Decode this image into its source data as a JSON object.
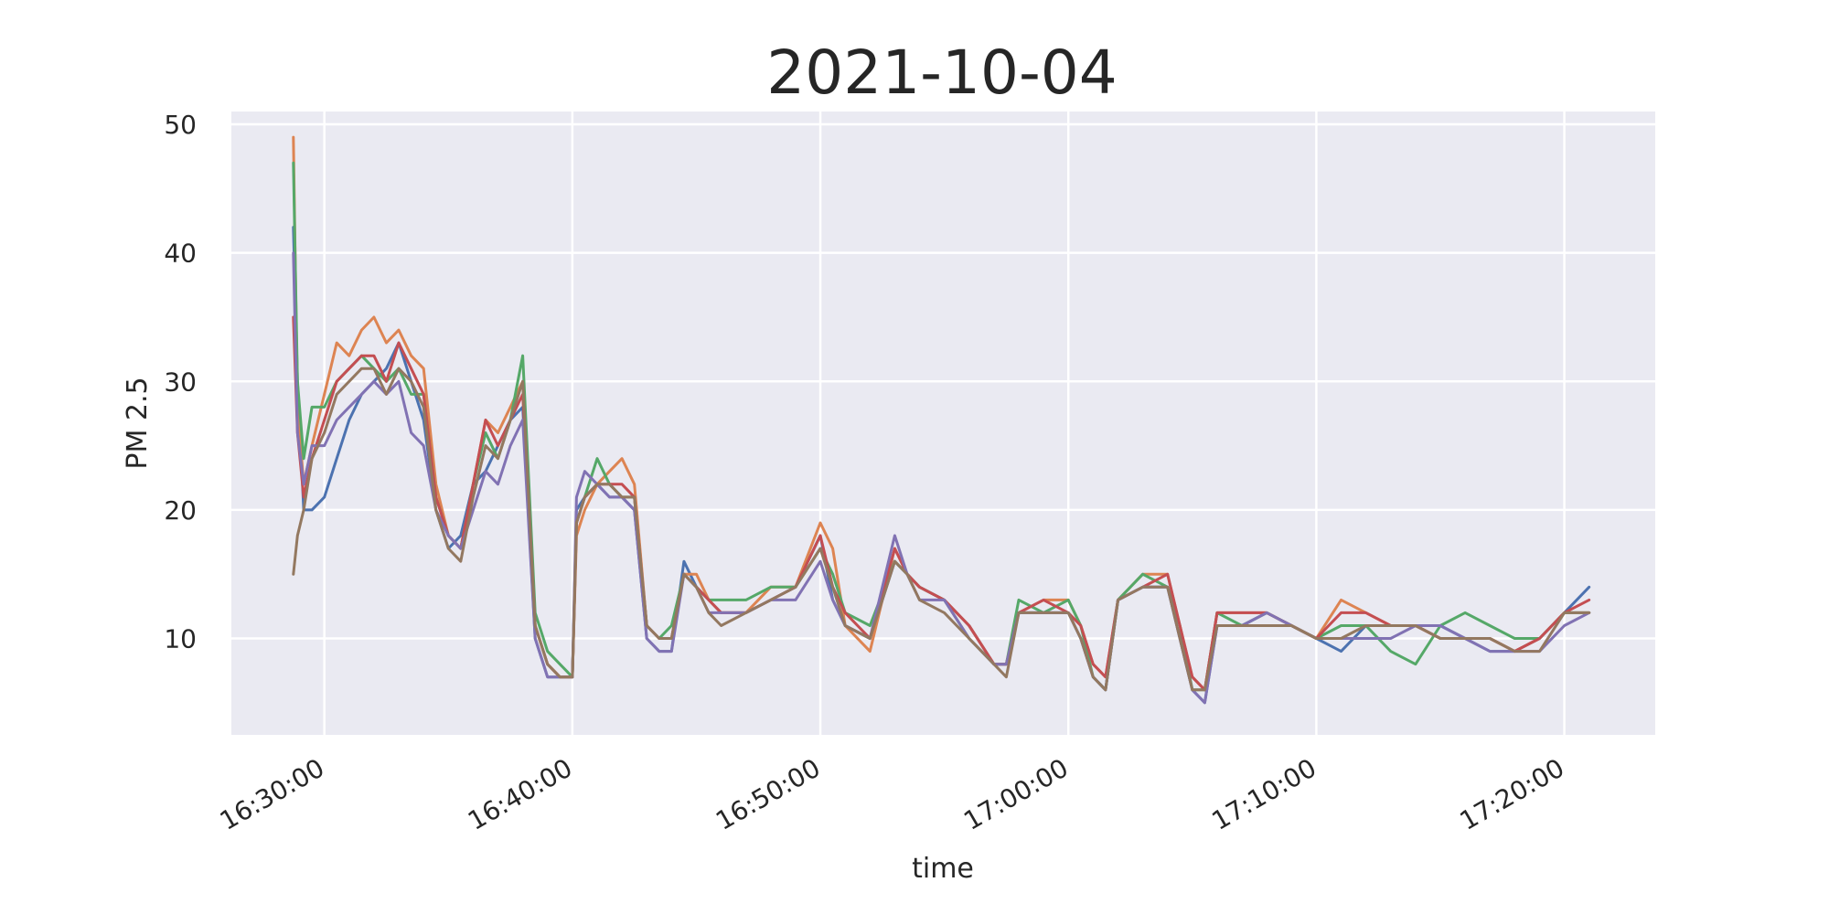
{
  "chart_data": {
    "type": "line",
    "title": "2021-10-04",
    "xlabel": "time",
    "ylabel": "PM 2.5",
    "x_ticks": [
      "16:30:00",
      "16:40:00",
      "16:50:00",
      "17:00:00",
      "17:10:00",
      "17:20:00"
    ],
    "y_ticks": [
      10,
      20,
      30,
      40,
      50
    ],
    "xlim": [
      "16:26:15",
      "17:23:40"
    ],
    "ylim": [
      2.5,
      51
    ],
    "grid": true,
    "legend": "none",
    "colors": [
      "#4c72b0",
      "#dd8452",
      "#55a868",
      "#c44e52",
      "#8172b3",
      "#937860"
    ],
    "background": "#eaeaf2",
    "series": [
      {
        "color": "#4c72b0",
        "x": [
          "16:28:45",
          "16:28:55",
          "16:29:10",
          "16:29:30",
          "16:30:00",
          "16:30:30",
          "16:31:00",
          "16:31:30",
          "16:32:00",
          "16:32:30",
          "16:33:00",
          "16:33:30",
          "16:34:00",
          "16:34:30",
          "16:35:00",
          "16:35:30",
          "16:36:00",
          "16:36:30",
          "16:37:00",
          "16:37:30",
          "16:38:00",
          "16:38:30",
          "16:39:00",
          "16:39:30",
          "16:40:00",
          "16:40:10",
          "16:40:30",
          "16:41:00",
          "16:41:30",
          "16:42:00",
          "16:42:30",
          "16:43:00",
          "16:43:30",
          "16:44:00",
          "16:44:30",
          "16:45:00",
          "16:45:30",
          "16:46:00",
          "16:47:00",
          "16:48:00",
          "16:49:00",
          "16:50:00",
          "16:50:30",
          "16:51:00",
          "16:52:00",
          "16:53:00",
          "16:53:30",
          "16:54:00",
          "16:55:00",
          "16:56:00",
          "16:57:00",
          "16:57:30",
          "16:58:00",
          "16:59:00",
          "17:00:00",
          "17:00:30",
          "17:01:00",
          "17:01:30",
          "17:02:00",
          "17:03:00",
          "17:04:00",
          "17:04:30",
          "17:05:00",
          "17:05:30",
          "17:06:00",
          "17:07:00",
          "17:08:00",
          "17:09:00",
          "17:10:00",
          "17:11:00",
          "17:12:00",
          "17:13:00",
          "17:14:00",
          "17:15:00",
          "17:16:00",
          "17:17:00",
          "17:18:00",
          "17:19:00",
          "17:20:00",
          "17:21:00"
        ],
        "y": [
          42,
          30,
          20,
          20,
          21,
          24,
          27,
          29,
          30,
          31,
          33,
          30,
          27,
          20,
          17,
          18,
          22,
          23,
          25,
          27,
          28,
          10,
          7,
          7,
          7,
          20,
          21,
          22,
          21,
          21,
          20,
          10,
          9,
          9,
          16,
          14,
          13,
          12,
          12,
          13,
          14,
          18,
          13,
          11,
          10,
          16,
          15,
          14,
          13,
          11,
          8,
          8,
          12,
          12,
          12,
          10,
          7,
          6,
          13,
          14,
          14,
          10,
          6,
          5,
          11,
          11,
          12,
          11,
          10,
          9,
          11,
          11,
          11,
          11,
          10,
          9,
          9,
          10,
          12,
          14
        ]
      },
      {
        "color": "#dd8452",
        "x": [
          "16:28:45",
          "16:28:55",
          "16:29:10",
          "16:29:30",
          "16:30:00",
          "16:30:30",
          "16:31:00",
          "16:31:30",
          "16:32:00",
          "16:32:30",
          "16:33:00",
          "16:33:30",
          "16:34:00",
          "16:34:30",
          "16:35:00",
          "16:35:30",
          "16:36:00",
          "16:36:30",
          "16:37:00",
          "16:37:30",
          "16:38:00",
          "16:38:30",
          "16:39:00",
          "16:39:30",
          "16:40:00",
          "16:40:10",
          "16:40:30",
          "16:41:00",
          "16:41:30",
          "16:42:00",
          "16:42:30",
          "16:43:00",
          "16:43:30",
          "16:44:00",
          "16:44:30",
          "16:45:00",
          "16:45:30",
          "16:46:00",
          "16:47:00",
          "16:48:00",
          "16:49:00",
          "16:50:00",
          "16:50:30",
          "16:51:00",
          "16:52:00",
          "16:53:00",
          "16:53:30",
          "16:54:00",
          "16:55:00",
          "16:56:00",
          "16:57:00",
          "16:57:30",
          "16:58:00",
          "16:59:00",
          "17:00:00",
          "17:00:30",
          "17:01:00",
          "17:01:30",
          "17:02:00",
          "17:03:00",
          "17:04:00",
          "17:04:30",
          "17:05:00",
          "17:05:30",
          "17:06:00",
          "17:07:00",
          "17:08:00",
          "17:09:00",
          "17:10:00",
          "17:11:00",
          "17:12:00",
          "17:13:00",
          "17:14:00",
          "17:15:00",
          "17:16:00",
          "17:17:00",
          "17:18:00",
          "17:19:00",
          "17:20:00",
          "17:21:00"
        ],
        "y": [
          49,
          28,
          22,
          25,
          29,
          33,
          32,
          34,
          35,
          33,
          34,
          32,
          31,
          22,
          18,
          17,
          22,
          27,
          26,
          28,
          30,
          11,
          8,
          7,
          7,
          18,
          20,
          22,
          23,
          24,
          22,
          11,
          10,
          10,
          15,
          15,
          13,
          12,
          12,
          14,
          14,
          19,
          17,
          11,
          9,
          17,
          15,
          14,
          13,
          11,
          8,
          8,
          12,
          13,
          13,
          11,
          8,
          7,
          13,
          15,
          15,
          11,
          7,
          6,
          12,
          12,
          12,
          11,
          10,
          13,
          12,
          11,
          11,
          10,
          10,
          10,
          9,
          10,
          12,
          12
        ]
      },
      {
        "color": "#55a868",
        "x": [
          "16:28:45",
          "16:28:55",
          "16:29:10",
          "16:29:30",
          "16:30:00",
          "16:30:30",
          "16:31:00",
          "16:31:30",
          "16:32:00",
          "16:32:30",
          "16:33:00",
          "16:33:30",
          "16:34:00",
          "16:34:30",
          "16:35:00",
          "16:35:30",
          "16:36:00",
          "16:36:30",
          "16:37:00",
          "16:37:30",
          "16:38:00",
          "16:38:30",
          "16:39:00",
          "16:39:30",
          "16:40:00",
          "16:40:10",
          "16:40:30",
          "16:41:00",
          "16:41:30",
          "16:42:00",
          "16:42:30",
          "16:43:00",
          "16:43:30",
          "16:44:00",
          "16:44:30",
          "16:45:00",
          "16:45:30",
          "16:46:00",
          "16:47:00",
          "16:48:00",
          "16:49:00",
          "16:50:00",
          "16:50:30",
          "16:51:00",
          "16:52:00",
          "16:53:00",
          "16:53:30",
          "16:54:00",
          "16:55:00",
          "16:56:00",
          "16:57:00",
          "16:57:30",
          "16:58:00",
          "16:59:00",
          "17:00:00",
          "17:00:30",
          "17:01:00",
          "17:01:30",
          "17:02:00",
          "17:03:00",
          "17:04:00",
          "17:04:30",
          "17:05:00",
          "17:05:30",
          "17:06:00",
          "17:07:00",
          "17:08:00",
          "17:09:00",
          "17:10:00",
          "17:11:00",
          "17:12:00",
          "17:13:00",
          "17:14:00",
          "17:15:00",
          "17:16:00",
          "17:17:00",
          "17:18:00",
          "17:19:00",
          "17:20:00",
          "17:21:00"
        ],
        "y": [
          47,
          30,
          24,
          28,
          28,
          30,
          31,
          32,
          31,
          30,
          31,
          29,
          29,
          21,
          18,
          17,
          22,
          26,
          24,
          27,
          32,
          12,
          9,
          8,
          7,
          19,
          21,
          24,
          22,
          21,
          21,
          11,
          10,
          11,
          15,
          14,
          13,
          13,
          13,
          14,
          14,
          17,
          15,
          12,
          11,
          16,
          15,
          14,
          13,
          10,
          8,
          8,
          13,
          12,
          13,
          11,
          7,
          6,
          13,
          15,
          14,
          11,
          6,
          6,
          12,
          11,
          12,
          11,
          10,
          11,
          11,
          9,
          8,
          11,
          12,
          11,
          10,
          10,
          12,
          12
        ]
      },
      {
        "color": "#c44e52",
        "x": [
          "16:28:45",
          "16:28:55",
          "16:29:10",
          "16:29:30",
          "16:30:00",
          "16:30:30",
          "16:31:00",
          "16:31:30",
          "16:32:00",
          "16:32:30",
          "16:33:00",
          "16:33:30",
          "16:34:00",
          "16:34:30",
          "16:35:00",
          "16:35:30",
          "16:36:00",
          "16:36:30",
          "16:37:00",
          "16:37:30",
          "16:38:00",
          "16:38:30",
          "16:39:00",
          "16:39:30",
          "16:40:00",
          "16:40:10",
          "16:40:30",
          "16:41:00",
          "16:41:30",
          "16:42:00",
          "16:42:30",
          "16:43:00",
          "16:43:30",
          "16:44:00",
          "16:44:30",
          "16:45:00",
          "16:45:30",
          "16:46:00",
          "16:47:00",
          "16:48:00",
          "16:49:00",
          "16:50:00",
          "16:50:30",
          "16:51:00",
          "16:52:00",
          "16:53:00",
          "16:53:30",
          "16:54:00",
          "16:55:00",
          "16:56:00",
          "16:57:00",
          "16:57:30",
          "16:58:00",
          "16:59:00",
          "17:00:00",
          "17:00:30",
          "17:01:00",
          "17:01:30",
          "17:02:00",
          "17:03:00",
          "17:04:00",
          "17:04:30",
          "17:05:00",
          "17:05:30",
          "17:06:00",
          "17:07:00",
          "17:08:00",
          "17:09:00",
          "17:10:00",
          "17:11:00",
          "17:12:00",
          "17:13:00",
          "17:14:00",
          "17:15:00",
          "17:16:00",
          "17:17:00",
          "17:18:00",
          "17:19:00",
          "17:20:00",
          "17:21:00"
        ],
        "y": [
          35,
          26,
          21,
          24,
          27,
          30,
          31,
          32,
          32,
          30,
          33,
          31,
          29,
          21,
          18,
          17,
          22,
          27,
          25,
          27,
          29,
          11,
          8,
          7,
          7,
          19,
          21,
          22,
          22,
          22,
          21,
          11,
          10,
          10,
          15,
          14,
          13,
          12,
          12,
          13,
          14,
          18,
          14,
          12,
          10,
          17,
          15,
          14,
          13,
          11,
          8,
          8,
          12,
          13,
          12,
          11,
          8,
          7,
          13,
          14,
          15,
          11,
          7,
          6,
          12,
          12,
          12,
          11,
          10,
          12,
          12,
          11,
          11,
          10,
          10,
          10,
          9,
          10,
          12,
          13
        ]
      },
      {
        "color": "#8172b3",
        "x": [
          "16:28:45",
          "16:28:55",
          "16:29:10",
          "16:29:30",
          "16:30:00",
          "16:30:30",
          "16:31:00",
          "16:31:30",
          "16:32:00",
          "16:32:30",
          "16:33:00",
          "16:33:30",
          "16:34:00",
          "16:34:30",
          "16:35:00",
          "16:35:30",
          "16:36:00",
          "16:36:30",
          "16:37:00",
          "16:37:30",
          "16:38:00",
          "16:38:30",
          "16:39:00",
          "16:39:30",
          "16:40:00",
          "16:40:10",
          "16:40:30",
          "16:41:00",
          "16:41:30",
          "16:42:00",
          "16:42:30",
          "16:43:00",
          "16:43:30",
          "16:44:00",
          "16:44:30",
          "16:45:00",
          "16:45:30",
          "16:46:00",
          "16:47:00",
          "16:48:00",
          "16:49:00",
          "16:50:00",
          "16:50:30",
          "16:51:00",
          "16:52:00",
          "16:53:00",
          "16:53:30",
          "16:54:00",
          "16:55:00",
          "16:56:00",
          "16:57:00",
          "16:57:30",
          "16:58:00",
          "16:59:00",
          "17:00:00",
          "17:00:30",
          "17:01:00",
          "17:01:30",
          "17:02:00",
          "17:03:00",
          "17:04:00",
          "17:04:30",
          "17:05:00",
          "17:05:30",
          "17:06:00",
          "17:07:00",
          "17:08:00",
          "17:09:00",
          "17:10:00",
          "17:11:00",
          "17:12:00",
          "17:13:00",
          "17:14:00",
          "17:15:00",
          "17:16:00",
          "17:17:00",
          "17:18:00",
          "17:19:00",
          "17:20:00",
          "17:21:00"
        ],
        "y": [
          40,
          26,
          22,
          25,
          25,
          27,
          28,
          29,
          30,
          29,
          30,
          26,
          25,
          20,
          18,
          17,
          20,
          23,
          22,
          25,
          27,
          10,
          7,
          7,
          7,
          21,
          23,
          22,
          21,
          21,
          20,
          10,
          9,
          9,
          15,
          14,
          12,
          12,
          12,
          13,
          13,
          16,
          13,
          11,
          10,
          18,
          15,
          13,
          13,
          10,
          8,
          8,
          12,
          12,
          12,
          10,
          7,
          6,
          13,
          14,
          14,
          10,
          6,
          5,
          11,
          11,
          12,
          11,
          10,
          10,
          10,
          10,
          11,
          11,
          10,
          9,
          9,
          9,
          11,
          12
        ]
      },
      {
        "color": "#937860",
        "x": [
          "16:28:45",
          "16:28:55",
          "16:29:10",
          "16:29:30",
          "16:30:00",
          "16:30:30",
          "16:31:00",
          "16:31:30",
          "16:32:00",
          "16:32:30",
          "16:33:00",
          "16:33:30",
          "16:34:00",
          "16:34:30",
          "16:35:00",
          "16:35:30",
          "16:36:00",
          "16:36:30",
          "16:37:00",
          "16:37:30",
          "16:38:00",
          "16:38:30",
          "16:39:00",
          "16:39:30",
          "16:40:00",
          "16:40:10",
          "16:40:30",
          "16:41:00",
          "16:41:30",
          "16:42:00",
          "16:42:30",
          "16:43:00",
          "16:43:30",
          "16:44:00",
          "16:44:30",
          "16:45:00",
          "16:45:30",
          "16:46:00",
          "16:47:00",
          "16:48:00",
          "16:49:00",
          "16:50:00",
          "16:50:30",
          "16:51:00",
          "16:52:00",
          "16:53:00",
          "16:53:30",
          "16:54:00",
          "16:55:00",
          "16:56:00",
          "16:57:00",
          "16:57:30",
          "16:58:00",
          "16:59:00",
          "17:00:00",
          "17:00:30",
          "17:01:00",
          "17:01:30",
          "17:02:00",
          "17:03:00",
          "17:04:00",
          "17:04:30",
          "17:05:00",
          "17:05:30",
          "17:06:00",
          "17:07:00",
          "17:08:00",
          "17:09:00",
          "17:10:00",
          "17:11:00",
          "17:12:00",
          "17:13:00",
          "17:14:00",
          "17:15:00",
          "17:16:00",
          "17:17:00",
          "17:18:00",
          "17:19:00",
          "17:20:00",
          "17:21:00"
        ],
        "y": [
          15,
          18,
          20,
          24,
          26,
          29,
          30,
          31,
          31,
          29,
          31,
          30,
          28,
          20,
          17,
          16,
          21,
          25,
          24,
          27,
          30,
          11,
          8,
          7,
          7,
          19,
          21,
          22,
          22,
          21,
          21,
          11,
          10,
          10,
          15,
          14,
          12,
          11,
          12,
          13,
          14,
          17,
          14,
          11,
          10,
          16,
          15,
          13,
          12,
          10,
          8,
          7,
          12,
          12,
          12,
          10,
          7,
          6,
          13,
          14,
          14,
          10,
          6,
          6,
          11,
          11,
          11,
          11,
          10,
          10,
          11,
          11,
          11,
          10,
          10,
          10,
          9,
          9,
          12,
          12
        ]
      }
    ]
  }
}
